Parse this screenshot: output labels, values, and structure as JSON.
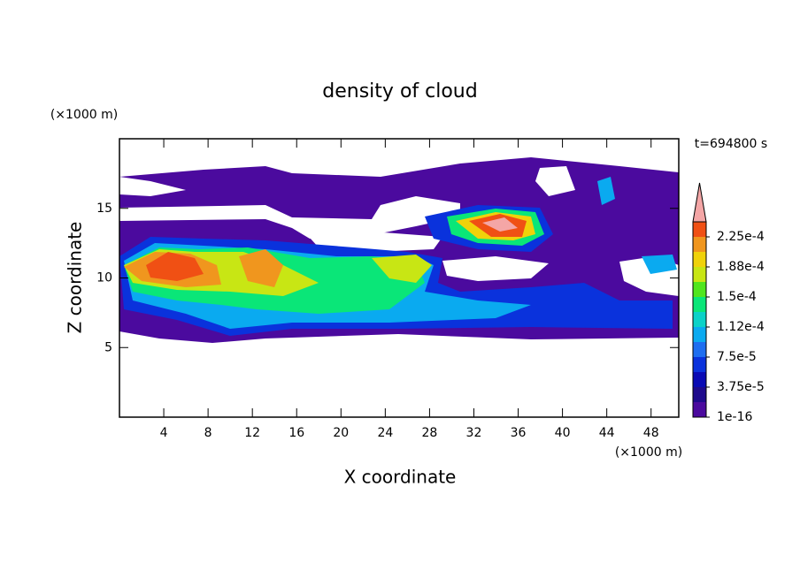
{
  "chart_data": {
    "type": "contour",
    "title": "density of cloud",
    "xlabel": "X coordinate",
    "ylabel": "Z coordinate",
    "xunit": "(×1000 m)",
    "yunit": "(×1000 m)",
    "time_label": "t=694800 s",
    "xlim": [
      0,
      50.5
    ],
    "xticks": [
      4,
      8,
      12,
      16,
      20,
      24,
      28,
      32,
      36,
      40,
      44,
      48
    ],
    "ylim": [
      0,
      20
    ],
    "yticks": [
      5,
      10,
      15
    ],
    "colorbar": {
      "clim": [
        1e-16,
        0.00024375
      ],
      "colors": [
        "#4b0a9e",
        "#1e0a8c",
        "#0a0ab4",
        "#0a32dc",
        "#1e6ef0",
        "#0aaaf0",
        "#0ad2c8",
        "#0ae678",
        "#50e61e",
        "#c8e614",
        "#f0d20a",
        "#f0961e",
        "#f05014"
      ],
      "extend_color": "#f4a6a6",
      "ticks": [
        {
          "value": 1e-16,
          "label": "1e-16"
        },
        {
          "value": 3.75e-05,
          "label": "3.75e-5"
        },
        {
          "value": 7.5e-05,
          "label": "7.5e-5"
        },
        {
          "value": 0.0001125,
          "label": "1.12e-4"
        },
        {
          "value": 0.00015,
          "label": "1.5e-4"
        },
        {
          "value": 0.0001875,
          "label": "1.88e-4"
        },
        {
          "value": 0.000225,
          "label": "2.25e-4"
        }
      ]
    }
  }
}
